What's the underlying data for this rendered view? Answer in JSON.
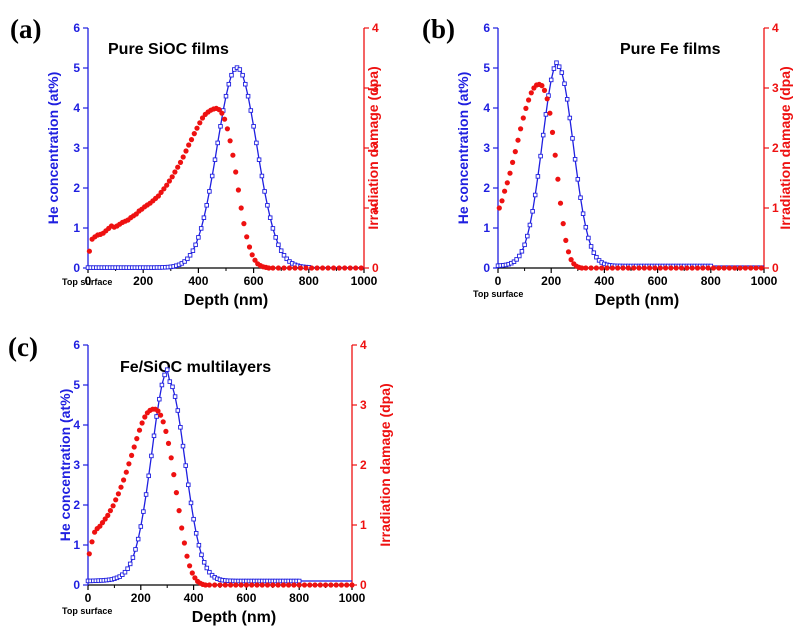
{
  "colors": {
    "he": "#1f1fe0",
    "damage": "#ee1111",
    "axis": "#000000"
  },
  "chart_data": [
    {
      "panel": "(a)",
      "type": "line",
      "title": "Pure SiOC films",
      "xlabel": "Depth (nm)",
      "ylabel_left": "He concentration (at%)",
      "ylabel_right": "Irradiation damage (dpa)",
      "annotation": "Top surface",
      "xlim": [
        0,
        1000
      ],
      "ylim_left": [
        0,
        6
      ],
      "ylim_right": [
        0,
        4
      ],
      "xticks": [
        "0",
        "200",
        "400",
        "600",
        "800",
        "1000"
      ],
      "yticks_left": [
        "0",
        "1",
        "2",
        "3",
        "4",
        "5",
        "6"
      ],
      "yticks_right": [
        "0",
        "1",
        "2",
        "3",
        "4"
      ],
      "series": [
        {
          "name": "He concentration (at%)",
          "axis": "left",
          "style": "line-square",
          "peak_x": 540,
          "peak_y": 5.0,
          "width": 72,
          "baseline": 0.01,
          "tail": [
            0,
            0
          ]
        },
        {
          "name": "Irradiation damage (dpa)",
          "axis": "right",
          "style": "dots",
          "points": [
            [
              5,
              0.28
            ],
            [
              15,
              0.48
            ],
            [
              25,
              0.52
            ],
            [
              35,
              0.55
            ],
            [
              45,
              0.56
            ],
            [
              55,
              0.58
            ],
            [
              65,
              0.62
            ],
            [
              75,
              0.66
            ],
            [
              85,
              0.7
            ],
            [
              95,
              0.68
            ],
            [
              105,
              0.7
            ],
            [
              115,
              0.73
            ],
            [
              125,
              0.76
            ],
            [
              135,
              0.78
            ],
            [
              145,
              0.8
            ],
            [
              155,
              0.84
            ],
            [
              165,
              0.87
            ],
            [
              175,
              0.9
            ],
            [
              185,
              0.95
            ],
            [
              195,
              0.98
            ],
            [
              205,
              1.02
            ],
            [
              215,
              1.05
            ],
            [
              225,
              1.08
            ],
            [
              235,
              1.12
            ],
            [
              245,
              1.16
            ],
            [
              255,
              1.2
            ],
            [
              265,
              1.26
            ],
            [
              275,
              1.32
            ],
            [
              285,
              1.38
            ],
            [
              295,
              1.45
            ],
            [
              305,
              1.52
            ],
            [
              315,
              1.6
            ],
            [
              325,
              1.68
            ],
            [
              335,
              1.76
            ],
            [
              345,
              1.85
            ],
            [
              355,
              1.95
            ],
            [
              365,
              2.05
            ],
            [
              375,
              2.14
            ],
            [
              385,
              2.24
            ],
            [
              395,
              2.33
            ],
            [
              405,
              2.42
            ],
            [
              415,
              2.5
            ],
            [
              425,
              2.56
            ],
            [
              435,
              2.6
            ],
            [
              445,
              2.63
            ],
            [
              455,
              2.65
            ],
            [
              465,
              2.66
            ],
            [
              475,
              2.64
            ],
            [
              485,
              2.58
            ],
            [
              495,
              2.48
            ],
            [
              505,
              2.32
            ],
            [
              515,
              2.12
            ],
            [
              525,
              1.88
            ],
            [
              535,
              1.6
            ],
            [
              545,
              1.3
            ],
            [
              555,
              1.0
            ],
            [
              565,
              0.74
            ],
            [
              575,
              0.52
            ],
            [
              585,
              0.35
            ],
            [
              595,
              0.22
            ],
            [
              605,
              0.13
            ],
            [
              615,
              0.07
            ],
            [
              625,
              0.04
            ],
            [
              635,
              0.02
            ],
            [
              645,
              0.01
            ],
            [
              655,
              0
            ],
            [
              670,
              0
            ],
            [
              690,
              0
            ],
            [
              710,
              0
            ],
            [
              730,
              0
            ],
            [
              750,
              0
            ],
            [
              770,
              0
            ],
            [
              790,
              0
            ],
            [
              810,
              0
            ],
            [
              830,
              0
            ],
            [
              850,
              0
            ],
            [
              870,
              0
            ],
            [
              890,
              0
            ],
            [
              910,
              0
            ],
            [
              930,
              0
            ],
            [
              950,
              0
            ],
            [
              970,
              0
            ],
            [
              990,
              0
            ]
          ]
        }
      ]
    },
    {
      "panel": "(b)",
      "type": "line",
      "title": "Pure Fe films",
      "xlabel": "Depth (nm)",
      "ylabel_left": "He concentration (at%)",
      "ylabel_right": "Irradiation damage (dpa)",
      "annotation": "Top surface",
      "xlim": [
        0,
        1000
      ],
      "ylim_left": [
        0,
        6
      ],
      "ylim_right": [
        0,
        4
      ],
      "xticks": [
        "0",
        "200",
        "400",
        "600",
        "800",
        "1000"
      ],
      "yticks_left": [
        "0",
        "1",
        "2",
        "3",
        "4",
        "5",
        "6"
      ],
      "yticks_right": [
        "0",
        "1",
        "2",
        "3",
        "4"
      ],
      "series": [
        {
          "name": "He concentration (at%)",
          "axis": "left",
          "style": "line-square",
          "peak_x": 225,
          "peak_y": 5.0,
          "width": 58,
          "baseline": 0.05,
          "tail": [
            0.1,
            150
          ]
        },
        {
          "name": "Irradiation damage (dpa)",
          "axis": "right",
          "style": "dots",
          "points": [
            [
              5,
              1.0
            ],
            [
              15,
              1.12
            ],
            [
              25,
              1.28
            ],
            [
              35,
              1.42
            ],
            [
              45,
              1.58
            ],
            [
              55,
              1.76
            ],
            [
              65,
              1.94
            ],
            [
              75,
              2.13
            ],
            [
              85,
              2.32
            ],
            [
              95,
              2.5
            ],
            [
              105,
              2.66
            ],
            [
              115,
              2.8
            ],
            [
              125,
              2.92
            ],
            [
              135,
              3.0
            ],
            [
              145,
              3.05
            ],
            [
              155,
              3.06
            ],
            [
              165,
              3.04
            ],
            [
              175,
              2.96
            ],
            [
              185,
              2.82
            ],
            [
              195,
              2.58
            ],
            [
              205,
              2.26
            ],
            [
              215,
              1.88
            ],
            [
              225,
              1.48
            ],
            [
              235,
              1.08
            ],
            [
              245,
              0.74
            ],
            [
              255,
              0.46
            ],
            [
              265,
              0.27
            ],
            [
              275,
              0.14
            ],
            [
              285,
              0.07
            ],
            [
              295,
              0.03
            ],
            [
              305,
              0.01
            ],
            [
              315,
              0
            ],
            [
              330,
              0
            ],
            [
              350,
              0
            ],
            [
              370,
              0
            ],
            [
              390,
              0
            ],
            [
              410,
              0
            ],
            [
              430,
              0
            ],
            [
              450,
              0
            ],
            [
              470,
              0
            ],
            [
              490,
              0
            ],
            [
              510,
              0
            ],
            [
              530,
              0
            ],
            [
              550,
              0
            ],
            [
              570,
              0
            ],
            [
              590,
              0
            ],
            [
              610,
              0
            ],
            [
              630,
              0
            ],
            [
              650,
              0
            ],
            [
              670,
              0
            ],
            [
              690,
              0
            ],
            [
              710,
              0
            ],
            [
              730,
              0
            ],
            [
              750,
              0
            ],
            [
              770,
              0
            ],
            [
              790,
              0
            ],
            [
              810,
              0
            ],
            [
              830,
              0
            ],
            [
              850,
              0
            ],
            [
              870,
              0
            ],
            [
              890,
              0
            ],
            [
              910,
              0
            ],
            [
              930,
              0
            ],
            [
              950,
              0
            ],
            [
              970,
              0
            ],
            [
              990,
              0
            ]
          ]
        }
      ]
    },
    {
      "panel": "(c)",
      "type": "line",
      "title": "Fe/SiOC multilayers",
      "xlabel": "Depth (nm)",
      "ylabel_left": "He concentration (at%)",
      "ylabel_right": "Irradiation damage (dpa)",
      "annotation": "Top surface",
      "xlim": [
        0,
        1000
      ],
      "ylim_left": [
        0,
        6
      ],
      "ylim_right": [
        0,
        4
      ],
      "xticks": [
        "0",
        "200",
        "400",
        "600",
        "800",
        "1000"
      ],
      "yticks_left": [
        "0",
        "1",
        "2",
        "3",
        "4",
        "5",
        "6"
      ],
      "yticks_right": [
        "0",
        "1",
        "2",
        "3",
        "4"
      ],
      "series": [
        {
          "name": "He concentration (at%)",
          "axis": "left",
          "style": "line-square",
          "peak_x": 305,
          "peak_y": 5.0,
          "width": 62,
          "baseline": 0.1,
          "tail": [
            0.3,
            160
          ]
        },
        {
          "name": "Irradiation damage (dpa)",
          "axis": "right",
          "style": "dots",
          "points": [
            [
              5,
              0.52
            ],
            [
              15,
              0.72
            ],
            [
              25,
              0.88
            ],
            [
              35,
              0.94
            ],
            [
              45,
              0.98
            ],
            [
              55,
              1.04
            ],
            [
              65,
              1.1
            ],
            [
              75,
              1.16
            ],
            [
              85,
              1.24
            ],
            [
              95,
              1.32
            ],
            [
              105,
              1.42
            ],
            [
              115,
              1.52
            ],
            [
              125,
              1.63
            ],
            [
              135,
              1.75
            ],
            [
              145,
              1.88
            ],
            [
              155,
              2.02
            ],
            [
              165,
              2.16
            ],
            [
              175,
              2.3
            ],
            [
              185,
              2.44
            ],
            [
              195,
              2.58
            ],
            [
              205,
              2.7
            ],
            [
              215,
              2.8
            ],
            [
              225,
              2.87
            ],
            [
              235,
              2.91
            ],
            [
              245,
              2.93
            ],
            [
              255,
              2.93
            ],
            [
              265,
              2.9
            ],
            [
              275,
              2.83
            ],
            [
              285,
              2.72
            ],
            [
              295,
              2.56
            ],
            [
              305,
              2.36
            ],
            [
              315,
              2.12
            ],
            [
              325,
              1.84
            ],
            [
              335,
              1.54
            ],
            [
              345,
              1.24
            ],
            [
              355,
              0.95
            ],
            [
              365,
              0.7
            ],
            [
              375,
              0.48
            ],
            [
              385,
              0.32
            ],
            [
              395,
              0.2
            ],
            [
              405,
              0.12
            ],
            [
              415,
              0.06
            ],
            [
              425,
              0.03
            ],
            [
              435,
              0.01
            ],
            [
              445,
              0
            ],
            [
              460,
              0
            ],
            [
              480,
              0
            ],
            [
              500,
              0
            ],
            [
              520,
              0
            ],
            [
              540,
              0
            ],
            [
              560,
              0
            ],
            [
              580,
              0
            ],
            [
              600,
              0
            ],
            [
              620,
              0
            ],
            [
              640,
              0
            ],
            [
              660,
              0
            ],
            [
              680,
              0
            ],
            [
              700,
              0
            ],
            [
              720,
              0
            ],
            [
              740,
              0
            ],
            [
              760,
              0
            ],
            [
              780,
              0
            ],
            [
              800,
              0
            ],
            [
              820,
              0
            ],
            [
              840,
              0
            ],
            [
              860,
              0
            ],
            [
              880,
              0
            ],
            [
              900,
              0
            ],
            [
              920,
              0
            ],
            [
              940,
              0
            ],
            [
              960,
              0
            ],
            [
              980,
              0
            ],
            [
              1000,
              0
            ]
          ]
        }
      ]
    }
  ]
}
